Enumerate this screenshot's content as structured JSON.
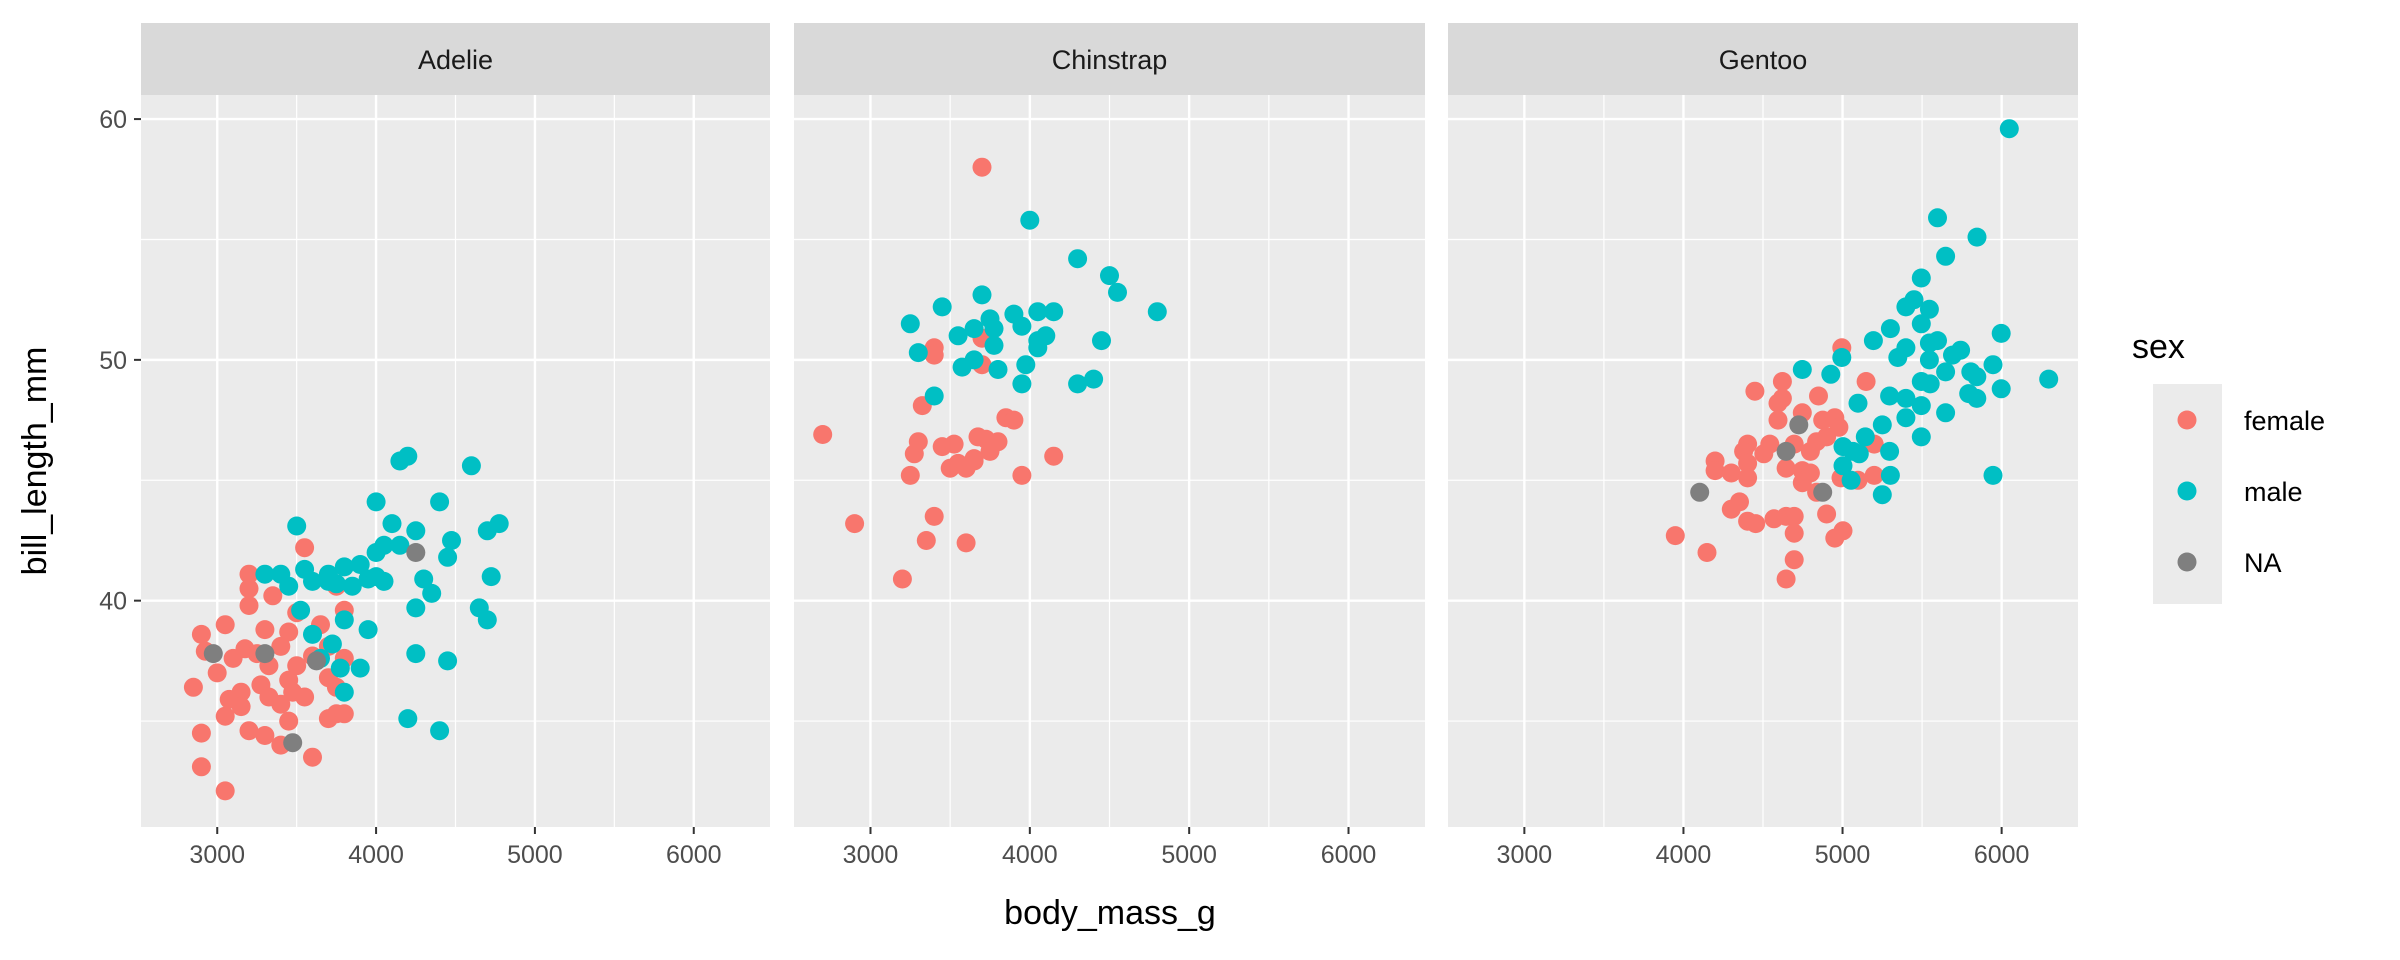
{
  "chart_data": {
    "type": "scatter",
    "xlabel": "body_mass_g",
    "ylabel": "bill_length_mm",
    "xlim": [
      2520,
      6480
    ],
    "ylim": [
      30.6,
      61.0
    ],
    "x_ticks": [
      3000,
      4000,
      5000,
      6000
    ],
    "x_minor": [
      3500,
      4500,
      5500
    ],
    "y_ticks": [
      40,
      50,
      60
    ],
    "y_minor": [
      35,
      45,
      55
    ],
    "grid": true,
    "legend": {
      "title": "sex",
      "placement": "right",
      "entries": [
        {
          "label": "female",
          "color": "#F8766D"
        },
        {
          "label": "male",
          "color": "#00BFC4"
        },
        {
          "label": "NA",
          "color": "#7F7F7F"
        }
      ]
    },
    "facets": [
      {
        "name": "Adelie",
        "points": {
          "female": [
            [
              2850,
              36.4
            ],
            [
              2900,
              38.6
            ],
            [
              2900,
              34.5
            ],
            [
              2900,
              33.1
            ],
            [
              2925,
              37.9
            ],
            [
              3000,
              37.0
            ],
            [
              3050,
              32.1
            ],
            [
              3050,
              35.2
            ],
            [
              3050,
              39.0
            ],
            [
              3075,
              35.9
            ],
            [
              3100,
              37.6
            ],
            [
              3150,
              36.2
            ],
            [
              3150,
              35.6
            ],
            [
              3175,
              38.0
            ],
            [
              3200,
              34.6
            ],
            [
              3200,
              39.8
            ],
            [
              3200,
              40.5
            ],
            [
              3200,
              41.1
            ],
            [
              3250,
              37.8
            ],
            [
              3275,
              36.5
            ],
            [
              3300,
              38.8
            ],
            [
              3300,
              34.4
            ],
            [
              3325,
              37.3
            ],
            [
              3325,
              36.0
            ],
            [
              3350,
              40.2
            ],
            [
              3400,
              38.1
            ],
            [
              3400,
              35.7
            ],
            [
              3400,
              34.0
            ],
            [
              3450,
              36.7
            ],
            [
              3450,
              38.7
            ],
            [
              3450,
              35.0
            ],
            [
              3475,
              36.2
            ],
            [
              3500,
              39.5
            ],
            [
              3500,
              37.3
            ],
            [
              3550,
              42.2
            ],
            [
              3550,
              36.0
            ],
            [
              3600,
              33.5
            ],
            [
              3600,
              37.7
            ],
            [
              3650,
              39.0
            ],
            [
              3700,
              36.8
            ],
            [
              3700,
              38.1
            ],
            [
              3700,
              35.1
            ],
            [
              3750,
              35.3
            ],
            [
              3750,
              36.4
            ],
            [
              3800,
              35.3
            ],
            [
              3800,
              37.6
            ],
            [
              3800,
              39.6
            ],
            [
              3750,
              40.6
            ]
          ],
          "male": [
            [
              3300,
              41.1
            ],
            [
              3400,
              41.1
            ],
            [
              3450,
              40.6
            ],
            [
              3500,
              43.1
            ],
            [
              3525,
              39.6
            ],
            [
              3550,
              41.3
            ],
            [
              3600,
              40.8
            ],
            [
              3600,
              38.6
            ],
            [
              3650,
              37.6
            ],
            [
              3700,
              40.8
            ],
            [
              3700,
              41.1
            ],
            [
              3725,
              38.2
            ],
            [
              3750,
              40.7
            ],
            [
              3775,
              37.2
            ],
            [
              3800,
              41.4
            ],
            [
              3800,
              39.2
            ],
            [
              3850,
              40.6
            ],
            [
              3900,
              37.2
            ],
            [
              3900,
              41.5
            ],
            [
              3950,
              40.9
            ],
            [
              3950,
              38.8
            ],
            [
              4000,
              44.1
            ],
            [
              4000,
              42.0
            ],
            [
              4050,
              42.3
            ],
            [
              4050,
              40.8
            ],
            [
              4100,
              43.2
            ],
            [
              4150,
              42.3
            ],
            [
              4150,
              45.8
            ],
            [
              4200,
              46.0
            ],
            [
              4200,
              35.1
            ],
            [
              4250,
              42.9
            ],
            [
              4250,
              39.7
            ],
            [
              4250,
              37.8
            ],
            [
              4300,
              40.9
            ],
            [
              4350,
              40.3
            ],
            [
              4400,
              44.1
            ],
            [
              4400,
              34.6
            ],
            [
              4450,
              41.8
            ],
            [
              4450,
              37.5
            ],
            [
              4475,
              42.5
            ],
            [
              4600,
              45.6
            ],
            [
              4650,
              39.7
            ],
            [
              4700,
              39.2
            ],
            [
              4700,
              42.9
            ],
            [
              4725,
              41.0
            ],
            [
              4775,
              43.2
            ],
            [
              3800,
              36.2
            ],
            [
              4000,
              41.0
            ]
          ],
          "NA": [
            [
              3475,
              34.1
            ],
            [
              3300,
              37.8
            ],
            [
              2975,
              37.8
            ],
            [
              4250,
              42.0
            ],
            [
              3625,
              37.5
            ]
          ]
        }
      },
      {
        "name": "Chinstrap",
        "points": {
          "female": [
            [
              2700,
              46.9
            ],
            [
              2900,
              43.2
            ],
            [
              3200,
              40.9
            ],
            [
              3250,
              45.2
            ],
            [
              3275,
              46.1
            ],
            [
              3300,
              46.6
            ],
            [
              3325,
              48.1
            ],
            [
              3350,
              42.5
            ],
            [
              3400,
              50.5
            ],
            [
              3400,
              43.5
            ],
            [
              3450,
              46.4
            ],
            [
              3500,
              45.5
            ],
            [
              3525,
              46.5
            ],
            [
              3550,
              45.7
            ],
            [
              3600,
              42.4
            ],
            [
              3650,
              45.9
            ],
            [
              3675,
              46.8
            ],
            [
              3700,
              58.0
            ],
            [
              3700,
              50.9
            ],
            [
              3700,
              49.8
            ],
            [
              3725,
              46.7
            ],
            [
              3750,
              46.2
            ],
            [
              3800,
              46.6
            ],
            [
              3850,
              47.6
            ],
            [
              3900,
              47.5
            ],
            [
              3950,
              45.2
            ],
            [
              4150,
              46.0
            ],
            [
              3650,
              45.8
            ],
            [
              3400,
              50.2
            ],
            [
              3600,
              45.5
            ]
          ],
          "male": [
            [
              3250,
              51.5
            ],
            [
              3300,
              50.3
            ],
            [
              3450,
              52.2
            ],
            [
              3550,
              51.0
            ],
            [
              3575,
              49.7
            ],
            [
              3650,
              51.3
            ],
            [
              3700,
              52.7
            ],
            [
              3750,
              51.7
            ],
            [
              3775,
              50.6
            ],
            [
              3800,
              49.6
            ],
            [
              3900,
              51.9
            ],
            [
              3950,
              49.0
            ],
            [
              3975,
              49.8
            ],
            [
              4000,
              55.8
            ],
            [
              4050,
              52.0
            ],
            [
              4050,
              50.5
            ],
            [
              4100,
              51.0
            ],
            [
              4150,
              52.0
            ],
            [
              4300,
              49.0
            ],
            [
              4300,
              54.2
            ],
            [
              4400,
              49.2
            ],
            [
              4450,
              50.8
            ],
            [
              4500,
              53.5
            ],
            [
              4550,
              52.8
            ],
            [
              4800,
              52.0
            ],
            [
              3400,
              48.5
            ],
            [
              3650,
              50.0
            ],
            [
              3775,
              51.3
            ],
            [
              3950,
              51.4
            ],
            [
              4050,
              50.8
            ]
          ],
          "NA": []
        }
      },
      {
        "name": "Gentoo",
        "points": {
          "female": [
            [
              4995,
              50.5
            ],
            [
              5148,
              49.1
            ],
            [
              4449,
              48.7
            ],
            [
              4622,
              49.1
            ],
            [
              4622,
              48.4
            ],
            [
              4594,
              48.2
            ],
            [
              4849,
              48.5
            ],
            [
              4747,
              47.8
            ],
            [
              4594,
              47.5
            ],
            [
              4875,
              47.5
            ],
            [
              4951,
              47.6
            ],
            [
              4977,
              47.2
            ],
            [
              4900,
              46.8
            ],
            [
              4837,
              46.6
            ],
            [
              4696,
              46.5
            ],
            [
              4798,
              46.2
            ],
            [
              4543,
              46.5
            ],
            [
              4403,
              46.5
            ],
            [
              4378,
              46.2
            ],
            [
              4505,
              46.1
            ],
            [
              4403,
              45.7
            ],
            [
              4199,
              45.8
            ],
            [
              4199,
              45.4
            ],
            [
              4301,
              45.3
            ],
            [
              4403,
              45.1
            ],
            [
              4645,
              45.5
            ],
            [
              4747,
              45.4
            ],
            [
              4798,
              45.3
            ],
            [
              4747,
              44.9
            ],
            [
              5199,
              46.5
            ],
            [
              5199,
              45.2
            ],
            [
              4990,
              45.1
            ],
            [
              5097,
              45.0
            ],
            [
              4837,
              44.5
            ],
            [
              4352,
              44.1
            ],
            [
              4301,
              43.8
            ],
            [
              4403,
              43.3
            ],
            [
              4454,
              43.2
            ],
            [
              4569,
              43.4
            ],
            [
              4645,
              43.5
            ],
            [
              4696,
              43.5
            ],
            [
              4696,
              42.8
            ],
            [
              4900,
              43.6
            ],
            [
              5003,
              42.9
            ],
            [
              4951,
              42.6
            ],
            [
              3949,
              42.7
            ],
            [
              4148,
              42.0
            ],
            [
              4696,
              41.7
            ],
            [
              4645,
              40.9
            ]
          ],
          "male": [
            [
              6048,
              59.6
            ],
            [
              5597,
              55.9
            ],
            [
              5845,
              55.1
            ],
            [
              5648,
              54.3
            ],
            [
              5495,
              53.4
            ],
            [
              5449,
              52.5
            ],
            [
              5398,
              52.2
            ],
            [
              5546,
              52.1
            ],
            [
              5495,
              51.5
            ],
            [
              5997,
              51.1
            ],
            [
              5301,
              51.3
            ],
            [
              5194,
              50.8
            ],
            [
              5398,
              50.5
            ],
            [
              5546,
              50.7
            ],
            [
              5597,
              50.8
            ],
            [
              5742,
              50.4
            ],
            [
              5691,
              50.2
            ],
            [
              5347,
              50.1
            ],
            [
              5546,
              50.0
            ],
            [
              4995,
              50.1
            ],
            [
              4747,
              49.6
            ],
            [
              4926,
              49.4
            ],
            [
              5946,
              49.8
            ],
            [
              6296,
              49.2
            ],
            [
              5648,
              49.5
            ],
            [
              5806,
              49.5
            ],
            [
              5844,
              49.3
            ],
            [
              5495,
              49.1
            ],
            [
              5551,
              49.0
            ],
            [
              5997,
              48.8
            ],
            [
              5793,
              48.6
            ],
            [
              5844,
              48.4
            ],
            [
              5296,
              48.5
            ],
            [
              5398,
              48.4
            ],
            [
              5097,
              48.2
            ],
            [
              5495,
              48.1
            ],
            [
              5648,
              47.8
            ],
            [
              5398,
              47.6
            ],
            [
              5250,
              47.3
            ],
            [
              5143,
              46.8
            ],
            [
              5495,
              46.8
            ],
            [
              5003,
              46.4
            ],
            [
              5066,
              46.2
            ],
            [
              5105,
              46.1
            ],
            [
              5296,
              46.2
            ],
            [
              5003,
              45.6
            ],
            [
              5054,
              45.0
            ],
            [
              5301,
              45.2
            ],
            [
              5946,
              45.2
            ],
            [
              5250,
              44.4
            ]
          ],
          "NA": [
            [
              4725,
              47.3
            ],
            [
              4645,
              46.2
            ],
            [
              4102,
              44.5
            ],
            [
              4875,
              44.5
            ]
          ]
        }
      }
    ]
  }
}
